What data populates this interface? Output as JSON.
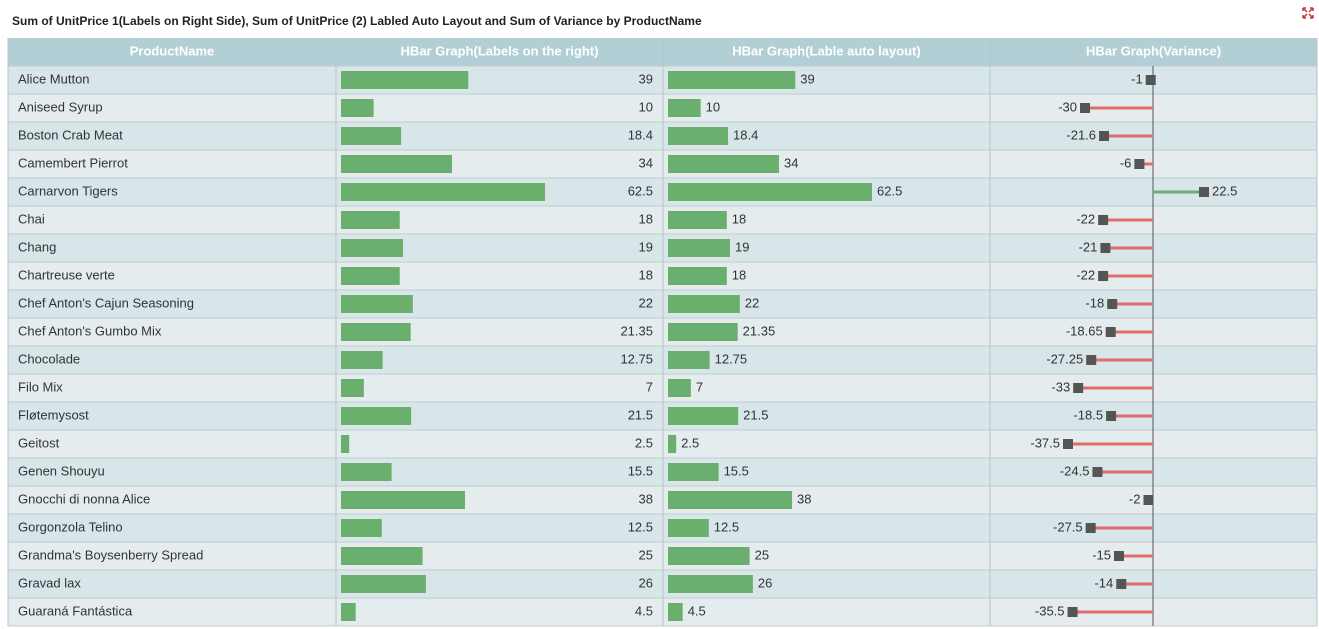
{
  "chart_data": {
    "type": "hbar-table",
    "title": "Sum of UnitPrice 1(Labels on Right Side), Sum of UnitPrice (2) Labled Auto Layout and Sum of Variance by ProductName",
    "category_header": "ProductName",
    "categories": [
      "Alice Mutton",
      "Aniseed Syrup",
      "Boston Crab Meat",
      "Camembert Pierrot",
      "Carnarvon Tigers",
      "Chai",
      "Chang",
      "Chartreuse verte",
      "Chef Anton's Cajun Seasoning",
      "Chef Anton's Gumbo Mix",
      "Chocolade",
      "Filo Mix",
      "Fløtemysost",
      "Geitost",
      "Genen Shouyu",
      "Gnocchi di nonna Alice",
      "Gorgonzola Telino",
      "Grandma's Boysenberry Spread",
      "Gravad lax",
      "Guaraná Fantástica"
    ],
    "series": [
      {
        "name": "HBar Graph(Labels on the right)",
        "color": "#6aaf6e",
        "label_position": "right",
        "values": [
          39,
          10,
          18.4,
          34,
          62.5,
          18,
          19,
          18,
          22,
          21.35,
          12.75,
          7,
          21.5,
          2.5,
          15.5,
          38,
          12.5,
          25,
          26,
          4.5
        ]
      },
      {
        "name": "HBar Graph(Lable auto layout)",
        "color": "#6aaf6e",
        "label_position": "auto",
        "values": [
          39,
          10,
          18.4,
          34,
          62.5,
          18,
          19,
          18,
          22,
          21.35,
          12.75,
          7,
          21.5,
          2.5,
          15.5,
          38,
          12.5,
          25,
          26,
          4.5
        ]
      },
      {
        "name": "HBar Graph(Variance)",
        "color": "#e06c6c",
        "positive_color": "#6aaf6e",
        "marker_color": "#555555",
        "label_position": "variance",
        "values": [
          -1,
          -30,
          -21.6,
          -6,
          22.5,
          -22,
          -21,
          -22,
          -18,
          -18.65,
          -27.25,
          -33,
          -18.5,
          -37.5,
          -24.5,
          -2,
          -27.5,
          -15,
          -14,
          -35.5
        ]
      }
    ]
  }
}
